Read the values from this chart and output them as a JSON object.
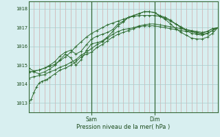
{
  "xlabel": "Pression niveau de la mer( hPa )",
  "bg_color": "#d8eff0",
  "grid_color_v": "#cc9999",
  "grid_color_h": "#aacccc",
  "line_color": "#2d6a2d",
  "vline_color": "#336633",
  "y_ticks": [
    1013,
    1014,
    1015,
    1016,
    1017,
    1018
  ],
  "ylim": [
    1012.5,
    1018.4
  ],
  "xlim": [
    0,
    72
  ],
  "sam_x": 24,
  "dim_x": 48,
  "series": [
    [
      0,
      1013.0,
      1,
      1013.2,
      2,
      1013.55,
      3,
      1013.85,
      4,
      1014.05,
      5,
      1014.15,
      6,
      1014.2,
      7,
      1014.25,
      8,
      1014.35,
      10,
      1014.55,
      12,
      1014.75,
      14,
      1014.85,
      16,
      1015.0,
      18,
      1015.2,
      20,
      1015.45,
      22,
      1015.6,
      24,
      1015.7,
      26,
      1015.95,
      28,
      1016.1,
      30,
      1016.3,
      32,
      1016.5,
      34,
      1016.65,
      36,
      1016.75,
      38,
      1016.85,
      40,
      1016.95,
      42,
      1017.05,
      44,
      1017.1,
      46,
      1017.1,
      48,
      1017.1,
      50,
      1017.05,
      52,
      1017.0,
      54,
      1016.95,
      56,
      1016.9,
      58,
      1016.85,
      60,
      1016.8,
      62,
      1016.8,
      64,
      1016.75,
      66,
      1016.7,
      68,
      1016.8,
      70,
      1016.95,
      72,
      1017.0
    ],
    [
      0,
      1014.3,
      2,
      1014.4,
      4,
      1014.45,
      6,
      1014.5,
      8,
      1014.65,
      10,
      1014.75,
      12,
      1014.9,
      14,
      1015.0,
      16,
      1015.15,
      18,
      1015.3,
      20,
      1015.55,
      22,
      1015.7,
      24,
      1015.9,
      26,
      1016.1,
      28,
      1016.25,
      30,
      1016.45,
      32,
      1016.65,
      34,
      1016.8,
      36,
      1016.9,
      38,
      1016.95,
      40,
      1017.0,
      42,
      1017.1,
      44,
      1017.15,
      46,
      1017.2,
      48,
      1017.2,
      50,
      1017.15,
      52,
      1017.1,
      54,
      1017.05,
      56,
      1017.0,
      58,
      1016.95,
      60,
      1016.9,
      62,
      1016.85,
      64,
      1016.8,
      66,
      1016.75,
      68,
      1016.8,
      70,
      1016.95,
      72,
      1017.0
    ],
    [
      0,
      1014.6,
      2,
      1014.7,
      4,
      1014.75,
      6,
      1014.85,
      8,
      1014.95,
      10,
      1015.05,
      12,
      1015.25,
      14,
      1015.45,
      16,
      1015.7,
      18,
      1016.0,
      20,
      1016.25,
      22,
      1016.5,
      24,
      1016.7,
      26,
      1016.85,
      28,
      1017.0,
      30,
      1017.15,
      32,
      1017.25,
      34,
      1017.35,
      36,
      1017.45,
      38,
      1017.55,
      40,
      1017.6,
      42,
      1017.65,
      44,
      1017.65,
      46,
      1017.65,
      48,
      1017.65,
      50,
      1017.6,
      52,
      1017.5,
      54,
      1017.35,
      56,
      1017.2,
      58,
      1017.05,
      60,
      1016.9,
      62,
      1016.8,
      64,
      1016.7,
      66,
      1016.65,
      68,
      1016.7,
      70,
      1016.85,
      72,
      1017.0
    ],
    [
      0,
      1014.85,
      2,
      1014.7,
      4,
      1014.75,
      6,
      1014.85,
      8,
      1015.0,
      10,
      1015.2,
      12,
      1015.5,
      14,
      1015.7,
      16,
      1015.8,
      18,
      1015.6,
      20,
      1015.75,
      22,
      1016.1,
      24,
      1016.4,
      26,
      1016.55,
      28,
      1016.65,
      30,
      1016.75,
      32,
      1016.9,
      34,
      1017.2,
      36,
      1017.35,
      38,
      1017.55,
      40,
      1017.65,
      42,
      1017.75,
      44,
      1017.85,
      46,
      1017.85,
      48,
      1017.8,
      50,
      1017.65,
      52,
      1017.55,
      54,
      1017.4,
      56,
      1017.2,
      58,
      1017.0,
      60,
      1016.85,
      62,
      1016.7,
      64,
      1016.65,
      66,
      1016.6,
      68,
      1016.7,
      70,
      1016.85,
      72,
      1017.0
    ],
    [
      0,
      1014.7,
      2,
      1014.65,
      4,
      1014.55,
      6,
      1014.65,
      8,
      1014.8,
      10,
      1015.0,
      12,
      1015.3,
      14,
      1015.6,
      16,
      1015.4,
      18,
      1015.0,
      20,
      1015.3,
      22,
      1015.8,
      24,
      1016.15,
      26,
      1016.2,
      28,
      1016.3,
      30,
      1016.5,
      32,
      1016.8,
      34,
      1017.1,
      36,
      1017.3,
      38,
      1017.55,
      40,
      1017.65,
      42,
      1017.75,
      44,
      1017.85,
      46,
      1017.85,
      48,
      1017.8,
      50,
      1017.6,
      52,
      1017.45,
      54,
      1017.2,
      56,
      1016.95,
      58,
      1016.75,
      60,
      1016.6,
      62,
      1016.45,
      64,
      1016.4,
      66,
      1016.4,
      68,
      1016.5,
      70,
      1016.7,
      72,
      1017.0
    ]
  ]
}
